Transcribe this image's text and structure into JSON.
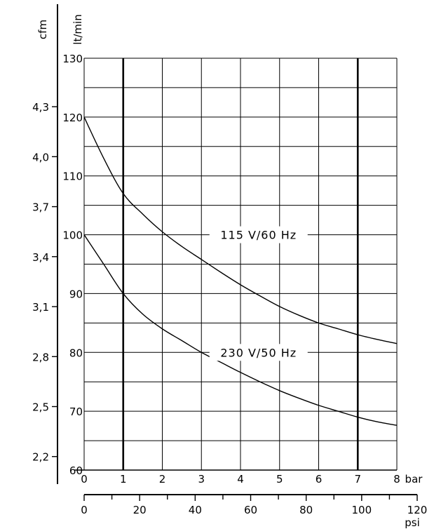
{
  "chart_data": {
    "type": "line",
    "x_axes": {
      "bar": {
        "label": "bar",
        "range": [
          0,
          8
        ],
        "ticks": [
          "0",
          "1",
          "2",
          "3",
          "4",
          "5",
          "6",
          "7",
          "8"
        ]
      },
      "psi": {
        "label": "psi",
        "range": [
          0,
          120
        ],
        "ticks": [
          "0",
          "20",
          "40",
          "60",
          "80",
          "100",
          "120"
        ]
      }
    },
    "y_axes": {
      "lt_min": {
        "label": "lt/min",
        "range": [
          60,
          130
        ],
        "ticks": [
          "60",
          "70",
          "80",
          "90",
          "100",
          "110",
          "120",
          "130"
        ]
      },
      "cfm": {
        "label": "cfm",
        "ticks": [
          {
            "label": "2,2",
            "value": 2.2
          },
          {
            "label": "2,5",
            "value": 2.5
          },
          {
            "label": "2,8",
            "value": 2.8
          },
          {
            "label": "3,1",
            "value": 3.1
          },
          {
            "label": "3,4",
            "value": 3.4
          },
          {
            "label": "3,7",
            "value": 3.7
          },
          {
            "label": "4,0",
            "value": 4.0
          },
          {
            "label": "4,3",
            "value": 4.3
          }
        ]
      }
    },
    "series": [
      {
        "name": "115 V/60 Hz",
        "x": [
          0,
          0.5,
          1,
          1.5,
          2,
          2.5,
          3,
          3.5,
          4,
          4.5,
          5,
          5.5,
          6,
          6.5,
          7,
          7.5,
          8
        ],
        "y": [
          120,
          113,
          107,
          103.5,
          100.5,
          98,
          95.8,
          93.6,
          91.5,
          89.6,
          87.8,
          86.3,
          85,
          84,
          83,
          82.2,
          81.5
        ]
      },
      {
        "name": "230 V/50 Hz",
        "x": [
          0,
          0.5,
          1,
          1.5,
          2,
          2.5,
          3,
          3.5,
          4,
          4.5,
          5,
          5.5,
          6,
          6.5,
          7,
          7.5,
          8
        ],
        "y": [
          100,
          95,
          90,
          86.5,
          84,
          82,
          80,
          78.3,
          76.6,
          75,
          73.5,
          72.2,
          71,
          70,
          69,
          68.2,
          67.6
        ]
      }
    ],
    "highlight_x": [
      1,
      7
    ],
    "grid": true
  },
  "colors": {
    "line": "#000000",
    "background": "#ffffff"
  }
}
